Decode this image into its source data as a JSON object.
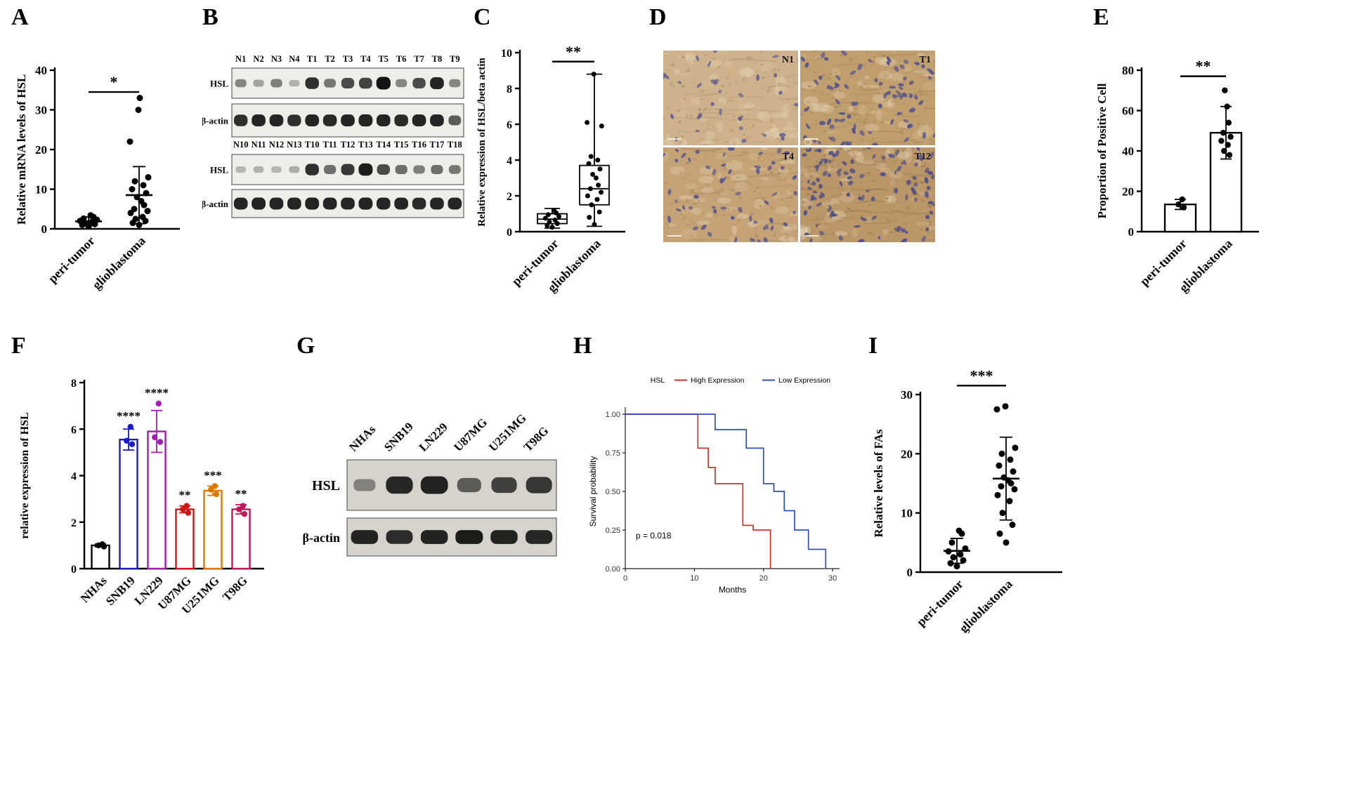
{
  "panels": {
    "A": {
      "letter": "A",
      "chart_data": {
        "type": "scatter",
        "ylabel": "Relative mRNA levels of HSL",
        "ylim": [
          0,
          40
        ],
        "yticks": [
          0,
          10,
          20,
          30,
          40
        ],
        "sig": "*",
        "sig_y": 34.5,
        "groups": [
          {
            "name": "peri-tumor",
            "points": [
              0.6,
              1,
              1.2,
              1.5,
              1.8,
              2,
              2.3,
              2.6,
              3,
              3.4
            ],
            "mean": 1.9,
            "err": 1.1
          },
          {
            "name": "glioblastoma",
            "points": [
              1,
              1.5,
              2,
              2.5,
              3,
              4,
              4.5,
              5,
              6,
              7,
              8,
              9,
              10,
              11,
              12,
              13,
              22,
              30,
              33
            ],
            "mean": 8.5,
            "err": 7.2
          }
        ]
      }
    },
    "B": {
      "letter": "B",
      "blots": [
        {
          "lanes": [
            "N1",
            "N2",
            "N3",
            "N4",
            "T1",
            "T2",
            "T3",
            "T4",
            "T5",
            "T6",
            "T7",
            "T8",
            "T9"
          ],
          "rows": [
            {
              "label": "HSL",
              "intensities": [
                0.35,
                0.2,
                0.4,
                0.12,
                0.85,
                0.45,
                0.7,
                0.75,
                1.0,
                0.35,
                0.7,
                0.9,
                0.35
              ]
            },
            {
              "label": "β-actin",
              "intensities": [
                0.85,
                0.9,
                0.9,
                0.85,
                0.9,
                0.88,
                0.9,
                0.92,
                0.9,
                0.88,
                0.9,
                0.9,
                0.6
              ]
            }
          ]
        },
        {
          "lanes": [
            "N10",
            "N11",
            "N12",
            "N13",
            "T10",
            "T11",
            "T12",
            "T13",
            "T14",
            "T15",
            "T16",
            "T17",
            "T18"
          ],
          "rows": [
            {
              "label": "HSL",
              "intensities": [
                0.1,
                0.12,
                0.1,
                0.15,
                0.85,
                0.5,
                0.8,
                0.95,
                0.7,
                0.5,
                0.4,
                0.5,
                0.45
              ]
            },
            {
              "label": "β-actin",
              "intensities": [
                0.9,
                0.92,
                0.9,
                0.9,
                0.92,
                0.9,
                0.9,
                0.92,
                0.9,
                0.9,
                0.88,
                0.9,
                0.9
              ]
            }
          ]
        }
      ]
    },
    "C": {
      "letter": "C",
      "chart_data": {
        "type": "box",
        "ylabel": "Relative expression of HSL/beta actin",
        "ylim": [
          0,
          10
        ],
        "yticks": [
          0,
          2,
          4,
          6,
          8,
          10
        ],
        "sig": "**",
        "sig_y": 9.5,
        "groups": [
          {
            "name": "peri-tumor",
            "q1": 0.45,
            "median": 0.7,
            "q3": 1.0,
            "lo": 0.2,
            "hi": 1.3,
            "points": [
              0.25,
              0.35,
              0.45,
              0.55,
              0.65,
              0.75,
              0.85,
              0.95,
              1.05,
              1.2
            ]
          },
          {
            "name": "glioblastoma",
            "q1": 1.5,
            "median": 2.4,
            "q3": 3.7,
            "lo": 0.3,
            "hi": 8.8,
            "points": [
              0.4,
              0.8,
              1.1,
              1.5,
              1.8,
              2.0,
              2.2,
              2.4,
              2.6,
              3.0,
              3.2,
              3.5,
              3.8,
              4.0,
              4.2,
              5.9,
              6.1,
              8.8
            ]
          }
        ]
      }
    },
    "D": {
      "letter": "D",
      "tiles": [
        {
          "label": "N1",
          "base": "#cfb28b",
          "speckle": "#a8895e",
          "nucleus_color": "#5c5c94",
          "nuclei": 30
        },
        {
          "label": "T1",
          "base": "#c19e6e",
          "speckle": "#98794e",
          "nucleus_color": "#53538c",
          "nuclei": 80
        },
        {
          "label": "T4",
          "base": "#c6a376",
          "speckle": "#9d7e52",
          "nucleus_color": "#56568e",
          "nuclei": 55
        },
        {
          "label": "T12",
          "base": "#ba9668",
          "speckle": "#917248",
          "nucleus_color": "#4e4e87",
          "nuclei": 100
        }
      ]
    },
    "E": {
      "letter": "E",
      "chart_data": {
        "type": "bar",
        "ylabel": "Proportion of Positive Cell",
        "ylim": [
          0,
          80
        ],
        "yticks": [
          0,
          20,
          40,
          60,
          80
        ],
        "sig": "**",
        "sig_y": 77,
        "groups": [
          {
            "name": "peri-tumor",
            "value": 13.5,
            "err": 2.5,
            "color": "#000000",
            "sig": "",
            "points": [
              12,
              13.5,
              16
            ]
          },
          {
            "name": "glioblastoma",
            "value": 49,
            "err": 13,
            "color": "#000000",
            "sig": "",
            "points": [
              38,
              40,
              43,
              45,
              47,
              49,
              54,
              62,
              70
            ]
          }
        ]
      }
    },
    "F": {
      "letter": "F",
      "chart_data": {
        "type": "bar",
        "ylabel": "relative expression of HSL",
        "ylim": [
          0,
          8
        ],
        "yticks": [
          0,
          2,
          4,
          6,
          8
        ],
        "groups": [
          {
            "name": "NHAs",
            "value": 1.0,
            "err": 0.06,
            "color": "#000000",
            "sig": "",
            "points": [
              0.95,
              1.0,
              1.05
            ]
          },
          {
            "name": "SNB19",
            "value": 5.55,
            "err": 0.45,
            "color": "#1a1ac8",
            "sig": "****",
            "points": [
              5.35,
              5.5,
              6.1
            ]
          },
          {
            "name": "LN229",
            "value": 5.9,
            "err": 0.9,
            "color": "#a21caf",
            "sig": "****",
            "points": [
              5.45,
              5.65,
              7.1
            ]
          },
          {
            "name": "U87MG",
            "value": 2.55,
            "err": 0.15,
            "color": "#d01616",
            "sig": "**",
            "points": [
              2.4,
              2.55,
              2.7
            ]
          },
          {
            "name": "U251MG",
            "value": 3.35,
            "err": 0.2,
            "color": "#e07800",
            "sig": "***",
            "points": [
              3.2,
              3.4,
              3.55
            ]
          },
          {
            "name": "T98G",
            "value": 2.55,
            "err": 0.2,
            "color": "#c2185b",
            "sig": "**",
            "points": [
              2.35,
              2.55,
              2.7
            ]
          }
        ]
      }
    },
    "G": {
      "letter": "G",
      "blot": {
        "lanes": [
          "NHAs",
          "SNB19",
          "LN229",
          "U87MG",
          "U251MG",
          "T98G"
        ],
        "rows": [
          {
            "label": "HSL",
            "intensities": [
              0.3,
              0.88,
              0.92,
              0.55,
              0.72,
              0.78
            ]
          },
          {
            "label": "β-actin",
            "intensities": [
              0.9,
              0.85,
              0.9,
              0.95,
              0.9,
              0.88
            ]
          }
        ]
      }
    },
    "H": {
      "letter": "H",
      "chart_data": {
        "type": "km",
        "legend_title": "HSL",
        "ylabel": "Survival probability",
        "xlabel": "Months",
        "p_text": "p = 0.018",
        "xlim": [
          0,
          31
        ],
        "xticks": [
          0,
          10,
          20,
          30
        ],
        "yticks": [
          0,
          0.25,
          0.5,
          0.75,
          1
        ],
        "ytick_labels": [
          "0.00",
          "0.25",
          "0.50",
          "0.75",
          "1.00"
        ],
        "series": [
          {
            "name": "High Expression",
            "color": "#c0392b",
            "steps": [
              [
                0,
                1
              ],
              [
                10.5,
                1
              ],
              [
                10.5,
                0.78
              ],
              [
                12,
                0.78
              ],
              [
                12,
                0.655
              ],
              [
                13,
                0.655
              ],
              [
                13,
                0.55
              ],
              [
                17,
                0.55
              ],
              [
                17,
                0.28
              ],
              [
                18.5,
                0.28
              ],
              [
                18.5,
                0.25
              ],
              [
                21,
                0.25
              ],
              [
                21,
                0
              ]
            ]
          },
          {
            "name": "Low Expression",
            "color": "#2e4fbe",
            "steps": [
              [
                0,
                1
              ],
              [
                13,
                1
              ],
              [
                13,
                0.9
              ],
              [
                17.5,
                0.9
              ],
              [
                17.5,
                0.78
              ],
              [
                20,
                0.78
              ],
              [
                20,
                0.55
              ],
              [
                21.5,
                0.55
              ],
              [
                21.5,
                0.5
              ],
              [
                23,
                0.5
              ],
              [
                23,
                0.375
              ],
              [
                24.5,
                0.375
              ],
              [
                24.5,
                0.25
              ],
              [
                26.5,
                0.25
              ],
              [
                26.5,
                0.125
              ],
              [
                29,
                0.125
              ],
              [
                29,
                0
              ]
            ]
          }
        ]
      }
    },
    "I": {
      "letter": "I",
      "chart_data": {
        "type": "scatter",
        "ylabel": "Relative levels of FAs",
        "ylim": [
          0,
          30
        ],
        "yticks": [
          0,
          10,
          20,
          30
        ],
        "sig": "***",
        "sig_y": 31.5,
        "groups": [
          {
            "name": "peri-tumor",
            "points": [
              1,
              1.5,
              2,
              2.5,
              3,
              3.5,
              4,
              5,
              6.5,
              7
            ],
            "mean": 3.6,
            "err": 2.1
          },
          {
            "name": "glioblastoma",
            "points": [
              5,
              6.5,
              8,
              10,
              12,
              13,
              14,
              14.5,
              15,
              15.5,
              16,
              17,
              18,
              19,
              20,
              21,
              27.5,
              28
            ],
            "mean": 15.8,
            "err": 7
          }
        ]
      }
    }
  }
}
